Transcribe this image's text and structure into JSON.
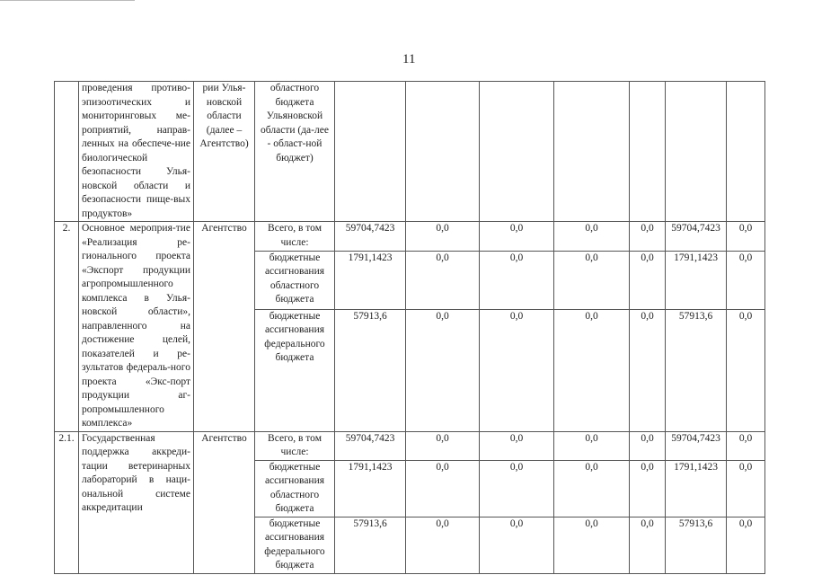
{
  "page_number": "11",
  "rows": [
    {
      "no": "",
      "desc": "проведения противо-эпизоотических и мониторинговых ме-роприятий, направ-ленных на обеспече-ние биологической безопасности Улья-новской области и безопасности пище-вых продуктов»",
      "exec": "рии Улья-новской области (далее – Агентство)",
      "source": "областного бюджета Ульяновской области (да-лее - област-ной бюджет)",
      "values": [
        "",
        "",
        "",
        "",
        "",
        "",
        ""
      ]
    },
    {
      "no": "2.",
      "desc": "Основное мероприя-тие «Реализация ре-гионального проекта «Экспорт продукции агропромышленного комплекса в Улья-новской области», направленного на достижение целей, показателей и ре-зультатов федераль-ного проекта «Экс-порт продукции аг-ропромышленного комплекса»",
      "exec": "Агентство",
      "sub": [
        {
          "source": "Всего, в том числе:",
          "values": [
            "59704,7423",
            "0,0",
            "0,0",
            "0,0",
            "0,0",
            "59704,7423",
            "0,0"
          ]
        },
        {
          "source": "бюджетные ассигнования областного бюджета",
          "values": [
            "1791,1423",
            "0,0",
            "0,0",
            "0,0",
            "0,0",
            "1791,1423",
            "0,0"
          ]
        },
        {
          "source": "бюджетные ассигнования федерального бюджета",
          "values": [
            "57913,6",
            "0,0",
            "0,0",
            "0,0",
            "0,0",
            "57913,6",
            "0,0"
          ]
        }
      ]
    },
    {
      "no": "2.1.",
      "desc": "Государственная поддержка аккреди-тации ветеринарных лабораторий в наци-ональной системе аккредитации",
      "exec": "Агентство",
      "sub": [
        {
          "source": "Всего, в том числе:",
          "values": [
            "59704,7423",
            "0,0",
            "0,0",
            "0,0",
            "0,0",
            "59704,7423",
            "0,0"
          ]
        },
        {
          "source": "бюджетные ассигнования областного бюджета",
          "values": [
            "1791,1423",
            "0,0",
            "0,0",
            "0,0",
            "0,0",
            "1791,1423",
            "0,0"
          ]
        },
        {
          "source": "бюджетные ассигнования федерального бюджета",
          "values": [
            "57913,6",
            "0,0",
            "0,0",
            "0,0",
            "0,0",
            "57913,6",
            "0,0"
          ]
        }
      ]
    }
  ]
}
